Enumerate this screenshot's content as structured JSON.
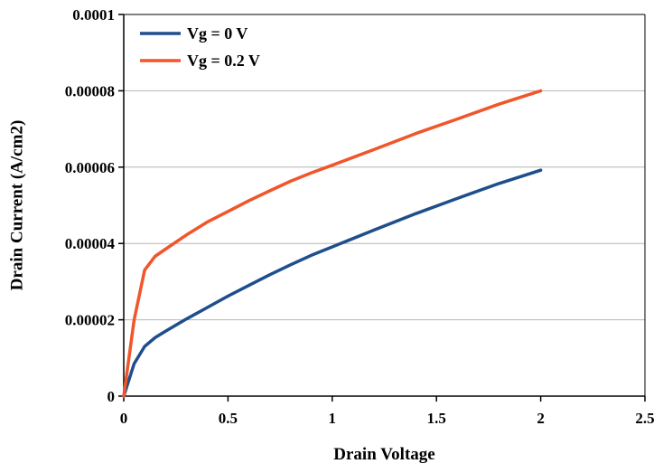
{
  "chart_data": {
    "type": "line",
    "title": "",
    "xlabel": "Drain Voltage",
    "ylabel": "Drain Current (A/cm2)",
    "xlim": [
      0,
      2.5
    ],
    "ylim": [
      0,
      0.0001
    ],
    "xticks": [
      0,
      0.5,
      1,
      1.5,
      2,
      2.5
    ],
    "xtick_labels": [
      "0",
      "0.5",
      "1",
      "1.5",
      "2",
      "2.5"
    ],
    "yticks": [
      0,
      2e-05,
      4e-05,
      6e-05,
      8e-05,
      0.0001
    ],
    "ytick_labels": [
      "0",
      "0.00002",
      "0.00004",
      "0.00006",
      "0.00008",
      "0.0001"
    ],
    "grid": "horizontal",
    "legend_position": "top-left",
    "series": [
      {
        "name": "Vg = 0 V",
        "color": "#1f4e8c",
        "x": [
          0,
          0.05,
          0.1,
          0.15,
          0.2,
          0.3,
          0.4,
          0.5,
          0.6,
          0.7,
          0.8,
          0.9,
          1.0,
          1.2,
          1.4,
          1.6,
          1.8,
          2.0
        ],
        "y": [
          0,
          8.5e-06,
          1.3e-05,
          1.53e-05,
          1.7e-05,
          2.02e-05,
          2.32e-05,
          2.62e-05,
          2.9e-05,
          3.18e-05,
          3.44e-05,
          3.69e-05,
          3.91e-05,
          4.35e-05,
          4.78e-05,
          5.18e-05,
          5.57e-05,
          5.92e-05
        ]
      },
      {
        "name": "Vg = 0.2 V",
        "color": "#f0562a",
        "x": [
          0,
          0.05,
          0.1,
          0.15,
          0.2,
          0.3,
          0.4,
          0.5,
          0.6,
          0.7,
          0.8,
          0.9,
          1.0,
          1.2,
          1.4,
          1.6,
          1.8,
          2.0
        ],
        "y": [
          0,
          2e-05,
          3.3e-05,
          3.66e-05,
          3.85e-05,
          4.22e-05,
          4.56e-05,
          4.84e-05,
          5.12e-05,
          5.38e-05,
          5.63e-05,
          5.85e-05,
          6.05e-05,
          6.46e-05,
          6.88e-05,
          7.26e-05,
          7.65e-05,
          8e-05
        ]
      }
    ]
  }
}
